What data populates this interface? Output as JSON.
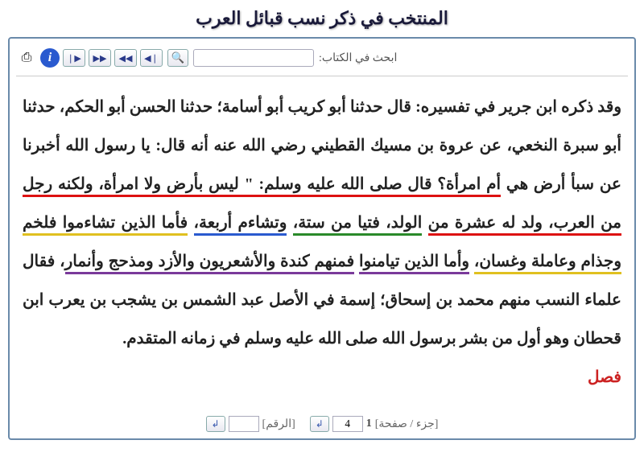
{
  "title": "المنتخب في ذكر نسب قبائل العرب",
  "toolbar": {
    "nav": {
      "first": "❘◀",
      "prev": "◀◀",
      "next": "▶▶",
      "last": "▶❘"
    },
    "info_glyph": "i",
    "download_glyph": "⎙",
    "search_label": "ابحث في الكتاب:",
    "search_glyph": "🔍"
  },
  "body": {
    "pre1": "وقد ذكره ابن جرير في تفسيره: قال حدثنا أبو كريب أبو أسامة؛ حدثنا الحسن أبو الحكم، حدثنا أبو سبرة النخعي، عن عروة بن مسيك القطيني رضي الله عنه أنه قال: يا رسول الله أخبرنا عن سبأ أرض هي ",
    "red": "أم امرأة؟ قال صلى الله عليه وسلم: \" ليس بأرض ولا امرأة، ولكنه رجل من العرب، ولد له عشرة من",
    "pre2": " ",
    "green": "الولد، فتيا من ستة،",
    "space1": " ",
    "blue": "وتشاءم أربعة،",
    "space2": " ",
    "yellow": "فأما الذين تشاءموا فلخم وجذام وعاملة وغسان،",
    "space3": " ",
    "purple_a": "وأما الذين تيامنوا",
    "purple_break": " ",
    "purple_b": "فمنهم كندة والأشعريون والأزد ومذحج وأنمار",
    "post": "، فقال علماء النسب منهم محمد بن إسحاق؛ إسمة في الأصل عبد الشمس بن يشجب بن يعرب ابن قحطان وهو أول من بشر برسول الله صلى الله عليه وسلم في زمانه المتقدم.",
    "section": "فصل"
  },
  "pager": {
    "part_page_label": "[جزء / صفحة]",
    "part_value": "1",
    "page_value": "4",
    "number_label": "[الرقم]",
    "number_value": "",
    "go_glyph": "↲"
  }
}
